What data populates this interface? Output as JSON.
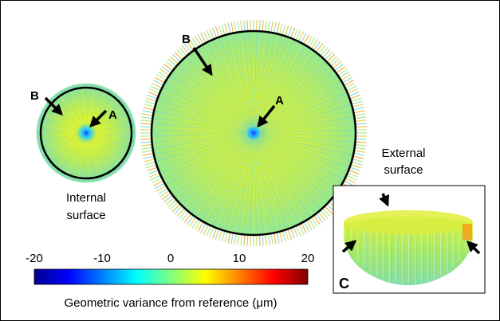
{
  "internal_disk": {
    "caption_line1": "Internal",
    "caption_line2": "surface",
    "label_a": "A",
    "label_b": "B"
  },
  "external_disk": {
    "caption_line1": "External",
    "caption_line2": "surface",
    "label_a": "A",
    "label_b": "B"
  },
  "bowl_panel": {
    "label": "C"
  },
  "colorbar": {
    "ticks": [
      "-20",
      "-10",
      "0",
      "10",
      "20"
    ],
    "min": -20,
    "max": 20,
    "colormap": "jet",
    "label": "Geometric variance from reference (μm)"
  },
  "colors": {
    "outline": "#000000",
    "arrow": "#000000",
    "jet_stops": [
      "#00008f",
      "#0000ff",
      "#00ffff",
      "#ffff00",
      "#ff0000",
      "#800000"
    ]
  }
}
